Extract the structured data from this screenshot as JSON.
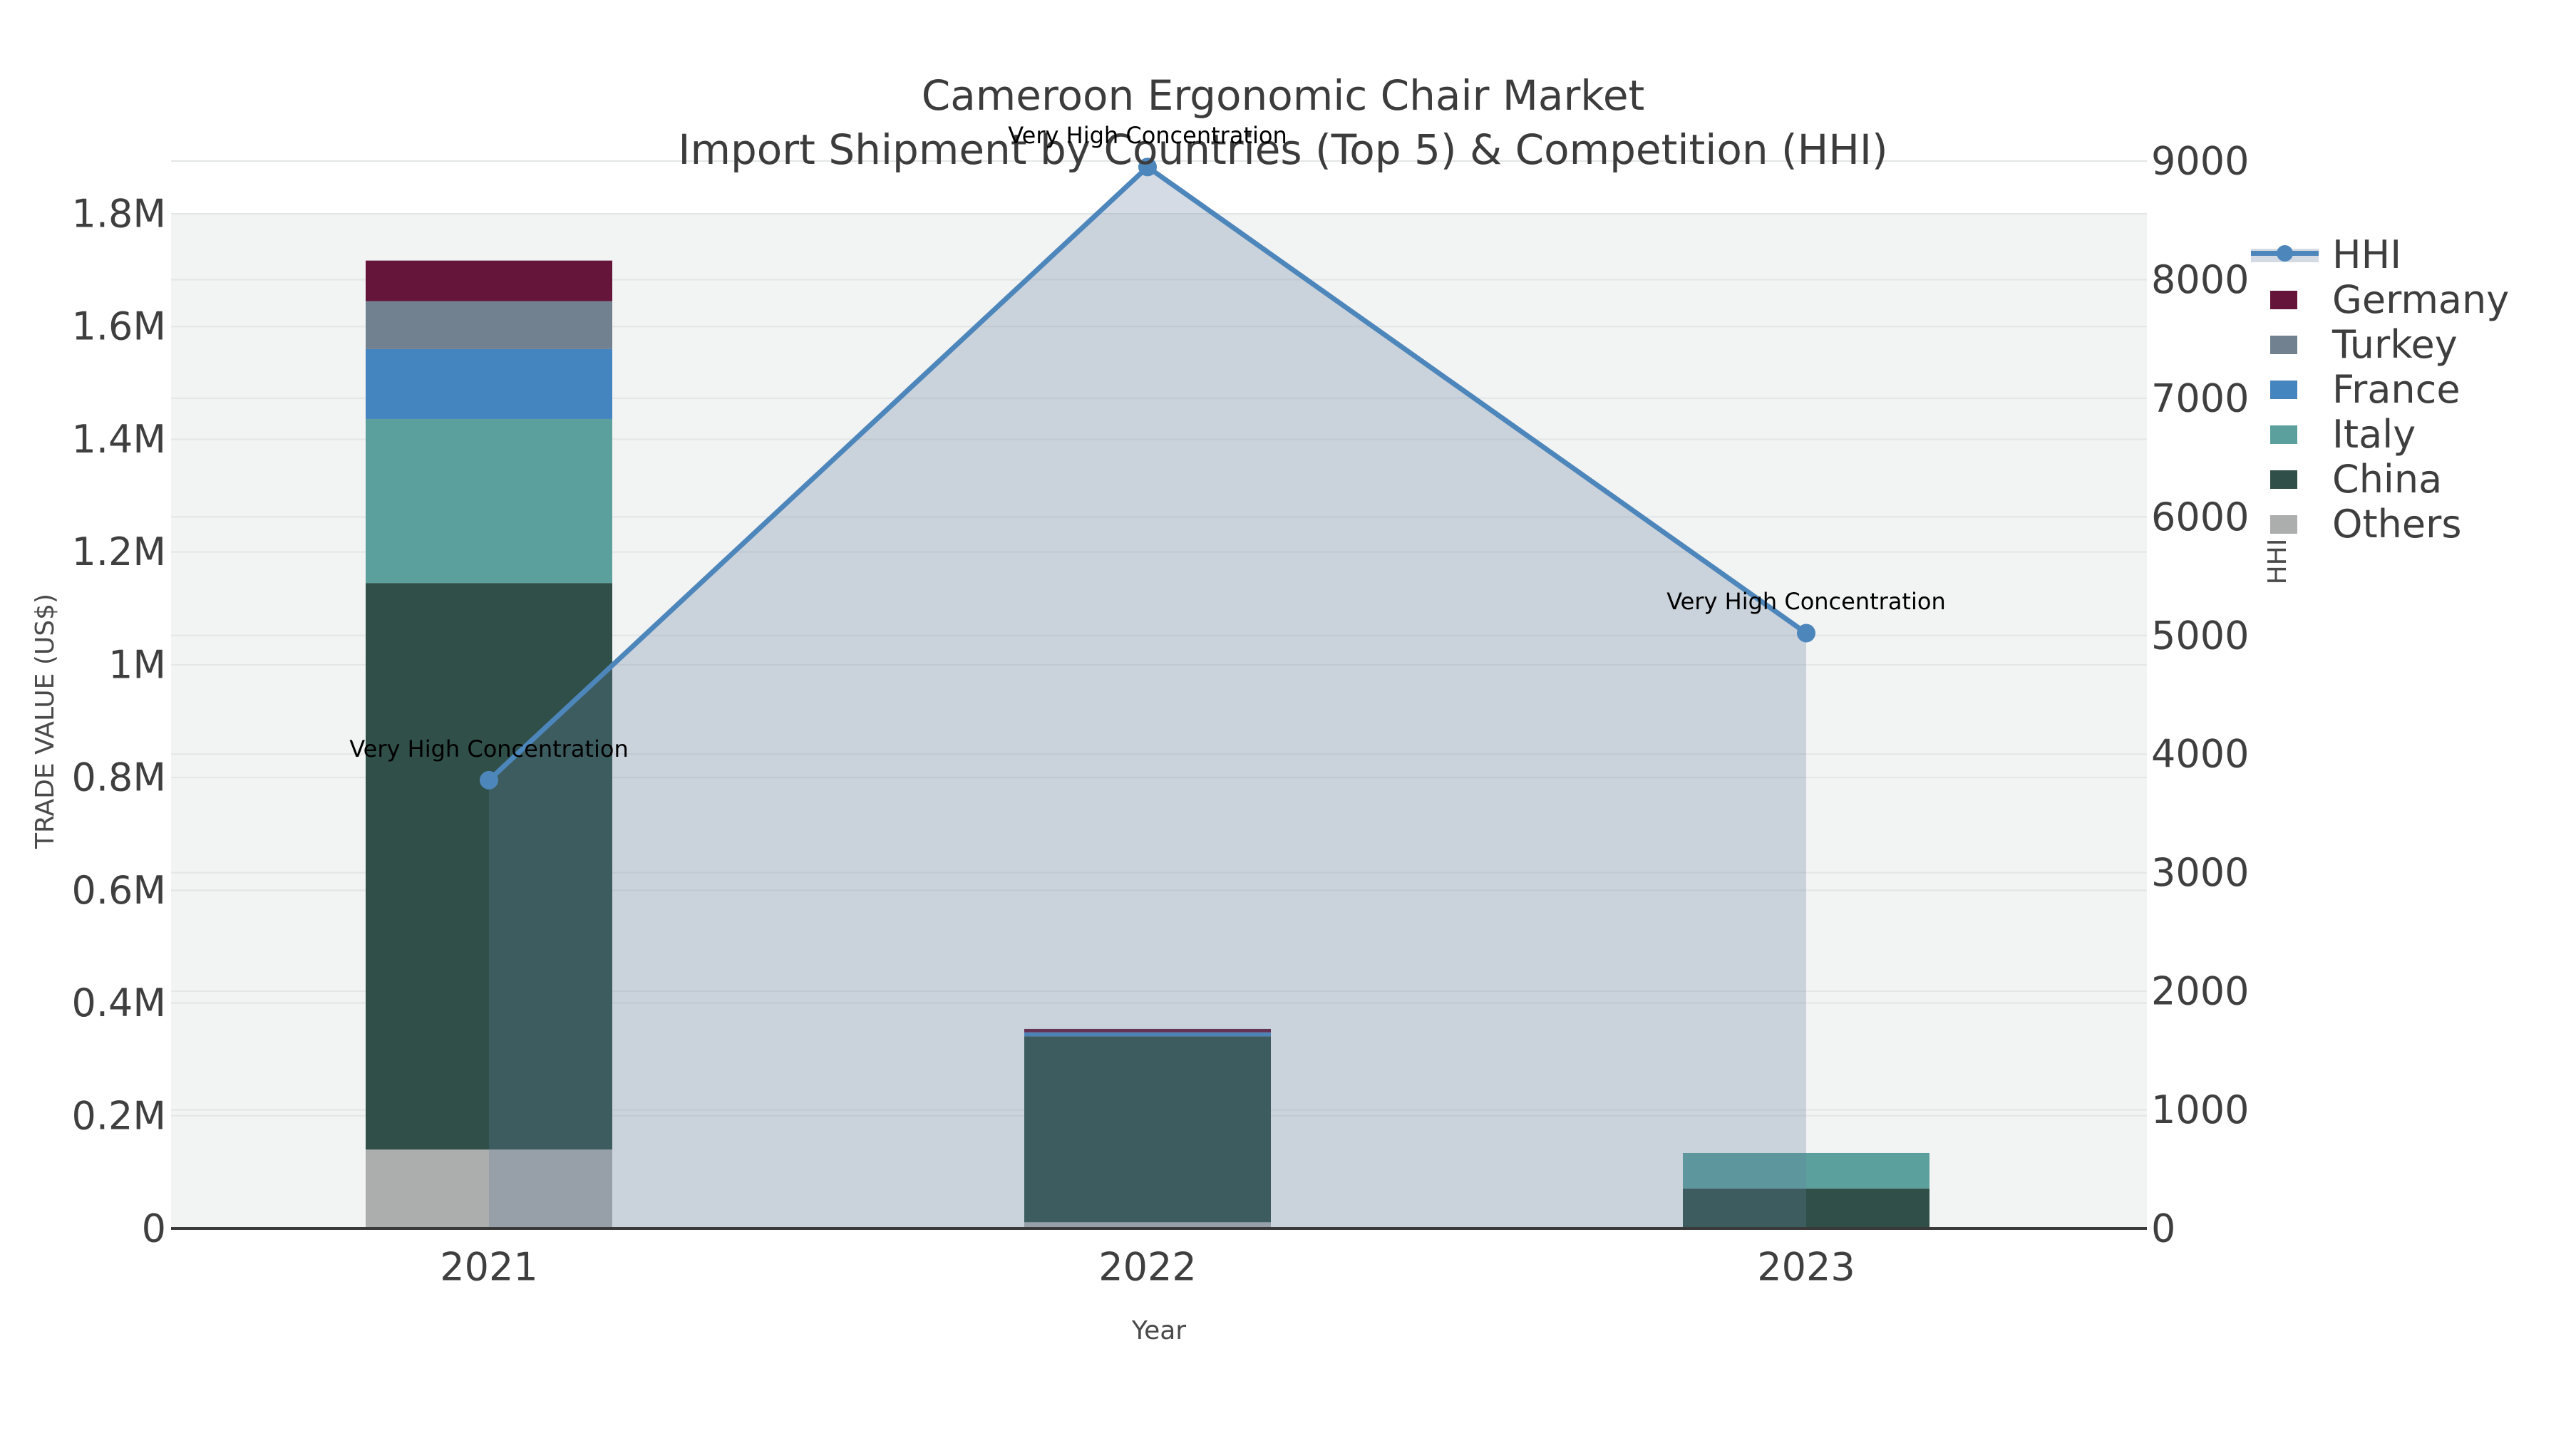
{
  "title": {
    "line1": "Cameroon Ergonomic Chair Market",
    "line2": "Import Shipment by Countries (Top 5) & Competition (HHI)"
  },
  "colors": {
    "plot_background": "#f2f3f3",
    "gridline": "#e3e6e6",
    "axis_line": "#3a3a3a",
    "tick_text": "#3f3f3f",
    "hhi_line": "#4d86bb",
    "hhi_area_fill": "rgba(100,124,157,0.28)"
  },
  "legend": {
    "items": [
      {
        "label": "HHI",
        "type": "line",
        "color": "#4d86bb"
      },
      {
        "label": "Germany",
        "type": "square",
        "color": "#641539"
      },
      {
        "label": "Turkey",
        "type": "square",
        "color": "#72818f"
      },
      {
        "label": "France",
        "type": "square",
        "color": "#4484bf"
      },
      {
        "label": "Italy",
        "type": "square",
        "color": "#5ca09e"
      },
      {
        "label": "China",
        "type": "square",
        "color": "#2f4f48"
      },
      {
        "label": "Others",
        "type": "square",
        "color": "#abaead"
      }
    ]
  },
  "chart_data": [
    {
      "type": "bar",
      "stacked": true,
      "categories": [
        "2021",
        "2022",
        "2023"
      ],
      "series": [
        {
          "name": "Germany",
          "color": "#641539",
          "values": [
            72000,
            6000,
            0
          ]
        },
        {
          "name": "Turkey",
          "color": "#72818f",
          "values": [
            85000,
            0,
            0
          ]
        },
        {
          "name": "France",
          "color": "#4484bf",
          "values": [
            124000,
            7000,
            0
          ]
        },
        {
          "name": "Italy",
          "color": "#5ca09e",
          "values": [
            291000,
            0,
            63000
          ]
        },
        {
          "name": "China",
          "color": "#2f4f48",
          "values": [
            1005000,
            330000,
            71000
          ]
        },
        {
          "name": "Others",
          "color": "#abaead",
          "values": [
            140000,
            11000,
            0
          ]
        }
      ],
      "stack_order_bottom_to_top": [
        "Others",
        "China",
        "Italy",
        "France",
        "Turkey",
        "Germany"
      ],
      "xlabel": "Year",
      "ylabel": "TRADE VALUE (US$)",
      "ylim": [
        0,
        1800000
      ],
      "yticks": [
        "0",
        "0.2M",
        "0.4M",
        "0.6M",
        "0.8M",
        "1M",
        "1.2M",
        "1.4M",
        "1.6M",
        "1.8M"
      ],
      "grid": true,
      "legend_position": "right-outside-top"
    },
    {
      "type": "line",
      "name": "HHI",
      "axis": "right",
      "color": "#4d86bb",
      "area_fill": "rgba(100,124,157,0.28)",
      "categories": [
        "2021",
        "2022",
        "2023"
      ],
      "values": [
        3780,
        8950,
        5020
      ],
      "ylabel": "HHI",
      "ylim": [
        0,
        9000
      ],
      "yticks": [
        "0",
        "1000",
        "2000",
        "3000",
        "4000",
        "5000",
        "6000",
        "7000",
        "8000",
        "9000"
      ],
      "annotations": [
        "Very High Concentration",
        "Very High Concentration",
        "Very High Concentration"
      ]
    }
  ]
}
